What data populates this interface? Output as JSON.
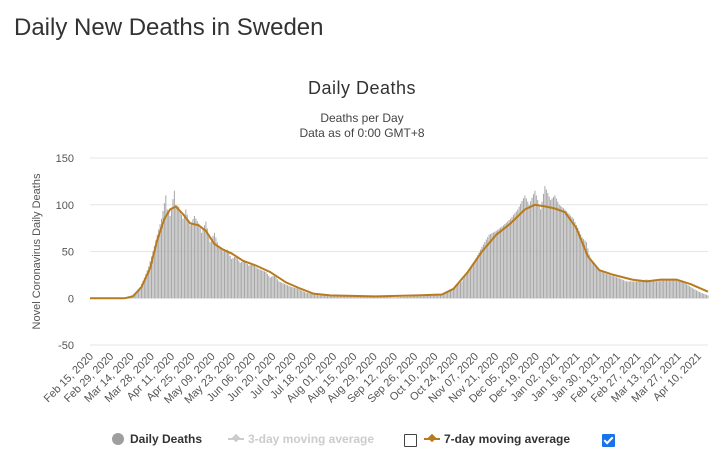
{
  "page": {
    "title": "Daily New Deaths in Sweden"
  },
  "chart_data": {
    "type": "bar",
    "title": "Daily Deaths",
    "subtitle_lines": [
      "Deaths per Day",
      "Data as of 0:00 GMT+8"
    ],
    "ylabel": "Novel Coronavirus Daily Deaths",
    "xlabel": "",
    "ylim": [
      -50,
      150
    ],
    "yticks": [
      -50,
      0,
      50,
      100,
      150
    ],
    "grid": true,
    "legend_position": "bottom",
    "x_start": "2020-02-15",
    "x_end": "2021-04-22",
    "xtick_labels": [
      "Feb 15, 2020",
      "Feb 29, 2020",
      "Mar 14, 2020",
      "Mar 28, 2020",
      "Apr 11, 2020",
      "Apr 25, 2020",
      "May 09, 2020",
      "May 23, 2020",
      "Jun 06, 2020",
      "Jun 20, 2020",
      "Jul 04, 2020",
      "Jul 18, 2020",
      "Aug 01, 2020",
      "Aug 15, 2020",
      "Aug 29, 2020",
      "Sep 12, 2020",
      "Sep 26, 2020",
      "Oct 10, 2020",
      "Oct 24, 2020",
      "Nov 07, 2020",
      "Nov 21, 2020",
      "Dec 05, 2020",
      "Dec 19, 2020",
      "Jan 02, 2021",
      "Jan 16, 2021",
      "Jan 30, 2021",
      "Feb 13, 2021",
      "Feb 27, 2021",
      "Mar 13, 2021",
      "Mar 27, 2021",
      "Apr 10, 2021"
    ],
    "series": [
      {
        "name": "Daily Deaths",
        "kind": "bar",
        "color": "#a6a6a6",
        "visible": true,
        "points": [
          [
            "2020-02-15",
            0
          ],
          [
            "2020-03-01",
            0
          ],
          [
            "2020-03-10",
            0
          ],
          [
            "2020-03-14",
            2
          ],
          [
            "2020-03-18",
            6
          ],
          [
            "2020-03-21",
            12
          ],
          [
            "2020-03-24",
            22
          ],
          [
            "2020-03-27",
            34
          ],
          [
            "2020-03-30",
            50
          ],
          [
            "2020-04-02",
            68
          ],
          [
            "2020-04-05",
            85
          ],
          [
            "2020-04-08",
            110
          ],
          [
            "2020-04-09",
            95
          ],
          [
            "2020-04-11",
            88
          ],
          [
            "2020-04-14",
            115
          ],
          [
            "2020-04-15",
            100
          ],
          [
            "2020-04-17",
            98
          ],
          [
            "2020-04-20",
            85
          ],
          [
            "2020-04-22",
            95
          ],
          [
            "2020-04-25",
            78
          ],
          [
            "2020-04-28",
            88
          ],
          [
            "2020-05-01",
            80
          ],
          [
            "2020-05-03",
            70
          ],
          [
            "2020-05-06",
            82
          ],
          [
            "2020-05-09",
            60
          ],
          [
            "2020-05-12",
            70
          ],
          [
            "2020-05-15",
            55
          ],
          [
            "2020-05-18",
            50
          ],
          [
            "2020-05-21",
            52
          ],
          [
            "2020-05-24",
            42
          ],
          [
            "2020-05-27",
            45
          ],
          [
            "2020-05-30",
            38
          ],
          [
            "2020-06-02",
            40
          ],
          [
            "2020-06-05",
            35
          ],
          [
            "2020-06-08",
            36
          ],
          [
            "2020-06-11",
            32
          ],
          [
            "2020-06-14",
            30
          ],
          [
            "2020-06-17",
            28
          ],
          [
            "2020-06-20",
            22
          ],
          [
            "2020-06-23",
            25
          ],
          [
            "2020-06-26",
            18
          ],
          [
            "2020-06-29",
            16
          ],
          [
            "2020-07-02",
            14
          ],
          [
            "2020-07-05",
            12
          ],
          [
            "2020-07-08",
            11
          ],
          [
            "2020-07-11",
            9
          ],
          [
            "2020-07-15",
            6
          ],
          [
            "2020-07-20",
            4
          ],
          [
            "2020-07-25",
            3
          ],
          [
            "2020-08-01",
            3
          ],
          [
            "2020-08-15",
            2
          ],
          [
            "2020-09-01",
            2
          ],
          [
            "2020-09-15",
            1
          ],
          [
            "2020-10-01",
            2
          ],
          [
            "2020-10-15",
            3
          ],
          [
            "2020-10-20",
            5
          ],
          [
            "2020-10-25",
            10
          ],
          [
            "2020-11-01",
            18
          ],
          [
            "2020-11-05",
            28
          ],
          [
            "2020-11-10",
            40
          ],
          [
            "2020-11-15",
            55
          ],
          [
            "2020-11-20",
            68
          ],
          [
            "2020-11-25",
            72
          ],
          [
            "2020-11-30",
            78
          ],
          [
            "2020-12-05",
            85
          ],
          [
            "2020-12-10",
            95
          ],
          [
            "2020-12-15",
            110
          ],
          [
            "2020-12-18",
            100
          ],
          [
            "2020-12-22",
            115
          ],
          [
            "2020-12-26",
            95
          ],
          [
            "2020-12-29",
            120
          ],
          [
            "2021-01-02",
            105
          ],
          [
            "2021-01-05",
            110
          ],
          [
            "2021-01-08",
            100
          ],
          [
            "2021-01-12",
            95
          ],
          [
            "2021-01-15",
            90
          ],
          [
            "2021-01-18",
            85
          ],
          [
            "2021-01-21",
            75
          ],
          [
            "2021-01-24",
            65
          ],
          [
            "2021-01-27",
            60
          ],
          [
            "2021-01-30",
            40
          ],
          [
            "2021-02-03",
            35
          ],
          [
            "2021-02-07",
            28
          ],
          [
            "2021-02-12",
            25
          ],
          [
            "2021-02-18",
            22
          ],
          [
            "2021-02-24",
            18
          ],
          [
            "2021-03-03",
            18
          ],
          [
            "2021-03-10",
            20
          ],
          [
            "2021-03-17",
            18
          ],
          [
            "2021-03-24",
            20
          ],
          [
            "2021-03-31",
            20
          ],
          [
            "2021-04-06",
            16
          ],
          [
            "2021-04-12",
            10
          ],
          [
            "2021-04-17",
            6
          ],
          [
            "2021-04-22",
            3
          ]
        ]
      },
      {
        "name": "3-day moving average",
        "kind": "line",
        "color": "#cccccc",
        "visible": false,
        "checked": false,
        "points": []
      },
      {
        "name": "7-day moving average",
        "kind": "line",
        "color": "#b87a1e",
        "visible": true,
        "checked": true,
        "points": [
          [
            "2020-02-15",
            0
          ],
          [
            "2020-03-10",
            0
          ],
          [
            "2020-03-16",
            2
          ],
          [
            "2020-03-22",
            12
          ],
          [
            "2020-03-28",
            32
          ],
          [
            "2020-04-02",
            62
          ],
          [
            "2020-04-07",
            85
          ],
          [
            "2020-04-11",
            95
          ],
          [
            "2020-04-15",
            98
          ],
          [
            "2020-04-20",
            90
          ],
          [
            "2020-04-25",
            80
          ],
          [
            "2020-05-01",
            78
          ],
          [
            "2020-05-06",
            72
          ],
          [
            "2020-05-12",
            58
          ],
          [
            "2020-05-18",
            52
          ],
          [
            "2020-05-24",
            48
          ],
          [
            "2020-06-01",
            40
          ],
          [
            "2020-06-10",
            35
          ],
          [
            "2020-06-20",
            28
          ],
          [
            "2020-07-01",
            17
          ],
          [
            "2020-07-10",
            11
          ],
          [
            "2020-07-20",
            5
          ],
          [
            "2020-08-01",
            3
          ],
          [
            "2020-09-01",
            2
          ],
          [
            "2020-10-01",
            3
          ],
          [
            "2020-10-18",
            4
          ],
          [
            "2020-10-26",
            10
          ],
          [
            "2020-11-05",
            28
          ],
          [
            "2020-11-15",
            50
          ],
          [
            "2020-11-25",
            68
          ],
          [
            "2020-12-05",
            80
          ],
          [
            "2020-12-15",
            95
          ],
          [
            "2020-12-22",
            100
          ],
          [
            "2020-12-30",
            98
          ],
          [
            "2021-01-05",
            96
          ],
          [
            "2021-01-12",
            92
          ],
          [
            "2021-01-20",
            75
          ],
          [
            "2021-01-28",
            45
          ],
          [
            "2021-02-05",
            30
          ],
          [
            "2021-02-15",
            25
          ],
          [
            "2021-02-28",
            20
          ],
          [
            "2021-03-10",
            18
          ],
          [
            "2021-03-20",
            20
          ],
          [
            "2021-03-31",
            20
          ],
          [
            "2021-04-10",
            15
          ],
          [
            "2021-04-22",
            7
          ]
        ]
      }
    ]
  },
  "legend": {
    "daily_deaths": "Daily Deaths",
    "ma3": "3-day moving average",
    "ma7": "7-day moving average"
  },
  "colors": {
    "bar": "#a6a6a6",
    "ma7": "#b87a1e",
    "ma3": "#cccccc",
    "checkbox_checked": "#1a73e8",
    "grid": "#e6e6e6"
  },
  "icons": {
    "daily_deaths_marker": "circle-icon",
    "ma_marker": "diamond-line-icon"
  }
}
